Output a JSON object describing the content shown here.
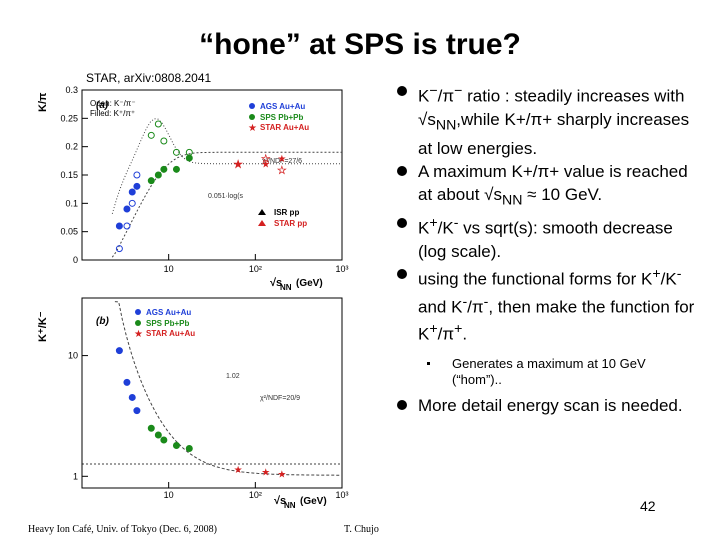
{
  "slide": {
    "title": "“hone” at SPS is true?",
    "reference": "STAR, arXiv:0808.2041",
    "page_number": "42",
    "footer_left": "Heavy Ion Café, Univ. of Tokyo (Dec. 6, 2008)",
    "footer_right": "T. Chujo"
  },
  "bullets": [
    {
      "pre": "K",
      "sup1": "−",
      "mid1": "/π",
      "sup2": "−",
      "rest": " ratio : steadily increases with √s",
      "sub": "NN",
      "post": ",while K+/π+ sharply increases at low energies."
    },
    {
      "pre": "A maximum K+/π+ value is reached at about √s",
      "sub": "NN",
      "post": " ≈ 10 GeV."
    },
    {
      "pre": "K",
      "sup1": "+",
      "mid1": "/K",
      "sup2": "-",
      "rest": " vs sqrt(s): smooth decrease (log scale)."
    },
    {
      "pre": "using the functional forms for K",
      "sup1": "+",
      "mid1": "/K",
      "sup2": "-",
      "mid2": " and K",
      "sup3": "-",
      "mid3": "/π",
      "sup4": "-",
      "mid4": ", then make the function for K",
      "sup5": "+",
      "mid5": "/π",
      "sup6": "+",
      "post": "."
    }
  ],
  "sub_bullet": "Generates a maximum at 10 GeV (“hom”)..",
  "bullet_last": "More detail energy scan is needed.",
  "figure": {
    "panel_a": {
      "label": "(a)",
      "ylabel": "K/π",
      "xlabel": "√s",
      "xlabel_sub": "NN",
      "xlabel_unit": "(GeV)",
      "legend_open": "Open: K⁻/π⁻",
      "legend_filled": "Filled: K⁺/π⁺",
      "legend": [
        "AGS Au+Au",
        "SPS Pb+Pb",
        "STAR Au+Au"
      ],
      "legend_isr": [
        "ISR pp",
        "STAR pp"
      ],
      "fit_text": "0.051·log(s",
      "fit_text2": "χ²/NDF=27/6",
      "yticks": [
        "0",
        "0.05",
        "0.1",
        "0.15",
        "0.2",
        "0.25",
        "0.3"
      ],
      "xticks": [
        "10",
        "10²",
        "10³"
      ]
    },
    "panel_b": {
      "label": "(b)",
      "ylabel": "K⁺/K⁻",
      "xlabel": "√s",
      "xlabel_sub": "NN",
      "xlabel_unit": "(GeV)",
      "legend": [
        "AGS Au+Au",
        "SPS Pb+Pb",
        "STAR Au+Au"
      ],
      "fit_text": "1.02",
      "fit_text2": "χ²/NDF=20/9",
      "yticks": [
        "1",
        "10"
      ],
      "xticks": [
        "10",
        "10²",
        "10³"
      ]
    },
    "colors": {
      "ags": "#1f3fd8",
      "sps": "#1a8a1a",
      "star": "#d42020",
      "fit": "#444444"
    }
  },
  "chart_data": [
    {
      "type": "scatter",
      "title": "(a)",
      "ylabel": "K/π",
      "xlabel": "√sNN (GeV)",
      "xscale": "log",
      "xlim": [
        1,
        1000
      ],
      "ylim": [
        0,
        0.3
      ],
      "series": [
        {
          "name": "AGS Au+Au K+/π+",
          "x": [
            2.7,
            3.3,
            3.8,
            4.3
          ],
          "y": [
            0.06,
            0.09,
            0.12,
            0.13
          ]
        },
        {
          "name": "SPS Pb+Pb K+/π+",
          "x": [
            6.3,
            7.6,
            8.8,
            12.3,
            17.3
          ],
          "y": [
            0.14,
            0.15,
            0.16,
            0.16,
            0.18
          ]
        },
        {
          "name": "STAR Au+Au K+/π+",
          "x": [
            62.4,
            130,
            200
          ],
          "y": [
            0.17,
            0.17,
            0.18
          ]
        },
        {
          "name": "AGS Au+Au K-/π-",
          "x": [
            2.7,
            3.3,
            3.8,
            4.3
          ],
          "y": [
            0.02,
            0.06,
            0.1,
            0.15
          ]
        },
        {
          "name": "SPS Pb+Pb K-/π-",
          "x": [
            6.3,
            7.6,
            8.8,
            12.3,
            17.3
          ],
          "y": [
            0.22,
            0.24,
            0.21,
            0.19,
            0.19
          ]
        },
        {
          "name": "STAR Au+Au K-/π-",
          "x": [
            62.4,
            130,
            200
          ],
          "y": [
            0.17,
            0.18,
            0.16
          ]
        }
      ]
    },
    {
      "type": "scatter",
      "title": "(b)",
      "ylabel": "K+/K-",
      "xlabel": "√sNN (GeV)",
      "xscale": "log",
      "yscale": "log",
      "xlim": [
        1,
        1000
      ],
      "ylim": [
        0.8,
        30
      ],
      "series": [
        {
          "name": "AGS Au+Au",
          "x": [
            2.7,
            3.3,
            3.8,
            4.3
          ],
          "y": [
            11,
            6,
            4.5,
            3.5
          ]
        },
        {
          "name": "SPS Pb+Pb",
          "x": [
            6.3,
            7.6,
            8.8,
            12.3,
            17.3
          ],
          "y": [
            2.5,
            2.2,
            2.0,
            1.8,
            1.7
          ]
        },
        {
          "name": "STAR Au+Au",
          "x": [
            62.4,
            130,
            200
          ],
          "y": [
            1.15,
            1.1,
            1.05
          ]
        }
      ]
    }
  ]
}
